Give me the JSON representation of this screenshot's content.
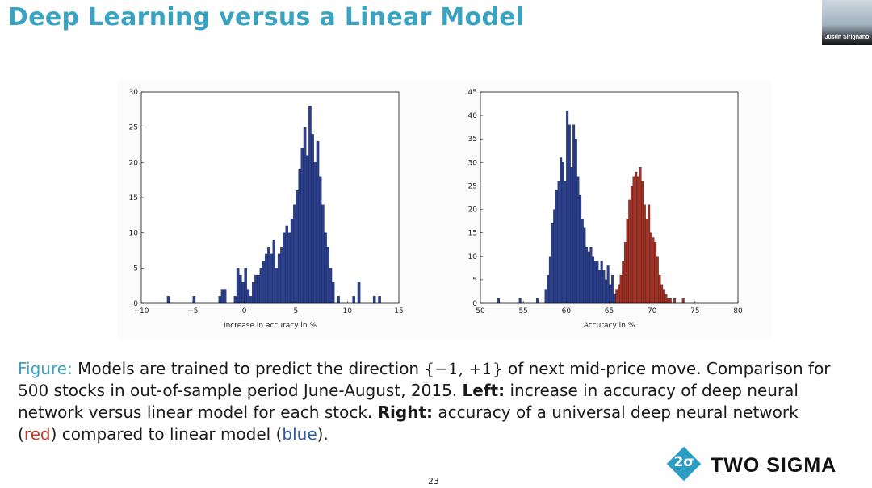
{
  "slide": {
    "title": "Deep Learning versus a Linear Model",
    "presenter_name": "Justin Sirignano",
    "page_number": "23"
  },
  "caption": {
    "figure_label": "Figure:",
    "part1": " Models are trained to predict the direction ",
    "math_set": "{−1, +1}",
    "part2": " of next mid-price move. Comparison for ",
    "math_500": "500",
    "part3": " stocks in out-of-sample period June-August, 2015. ",
    "left_label": "Left:",
    "part4": " increase in accuracy of deep neural network versus linear model for each stock. ",
    "right_label": "Right:",
    "part5": " accuracy of a universal deep neural network (",
    "red_word": "red",
    "part6": ") compared to linear model (",
    "blue_word": "blue",
    "part7": ")."
  },
  "logo": {
    "glyph": "2σ",
    "text": "TWO SIGMA"
  },
  "colors": {
    "title": "#3aa3c2",
    "blue_bars": "#2b3f8c",
    "red_bars": "#a8301f",
    "logo": "#2b9cc4"
  },
  "chart_data": [
    {
      "type": "bar",
      "title": "",
      "xlabel": "Increase in accuracy in %",
      "ylabel": "",
      "xlim": [
        -10,
        15
      ],
      "ylim": [
        0,
        30
      ],
      "xticks": [
        -10,
        -5,
        0,
        5,
        10,
        15
      ],
      "yticks": [
        0,
        5,
        10,
        15,
        20,
        25,
        30
      ],
      "bin_width": 0.25,
      "series": [
        {
          "name": "deep vs linear",
          "color": "#2b3f8c",
          "bins": [
            [
              -7.5,
              1
            ],
            [
              -5.0,
              1
            ],
            [
              -2.5,
              1
            ],
            [
              -2.25,
              2
            ],
            [
              -2.0,
              2
            ],
            [
              -1.0,
              1
            ],
            [
              -0.75,
              5
            ],
            [
              -0.5,
              4
            ],
            [
              -0.25,
              3
            ],
            [
              0.0,
              5
            ],
            [
              0.25,
              2
            ],
            [
              0.5,
              1
            ],
            [
              0.75,
              3
            ],
            [
              1.0,
              4
            ],
            [
              1.25,
              4
            ],
            [
              1.5,
              5
            ],
            [
              1.75,
              6
            ],
            [
              2.0,
              7
            ],
            [
              2.25,
              8
            ],
            [
              2.5,
              7
            ],
            [
              2.75,
              9
            ],
            [
              3.0,
              5
            ],
            [
              3.25,
              7
            ],
            [
              3.5,
              8
            ],
            [
              3.75,
              10
            ],
            [
              4.0,
              11
            ],
            [
              4.25,
              10
            ],
            [
              4.5,
              12
            ],
            [
              4.75,
              14
            ],
            [
              5.0,
              16
            ],
            [
              5.25,
              19
            ],
            [
              5.5,
              22
            ],
            [
              5.75,
              25
            ],
            [
              6.0,
              21
            ],
            [
              6.25,
              28
            ],
            [
              6.5,
              24
            ],
            [
              6.75,
              20
            ],
            [
              7.0,
              23
            ],
            [
              7.25,
              18
            ],
            [
              7.5,
              14
            ],
            [
              7.75,
              10
            ],
            [
              8.0,
              8
            ],
            [
              8.25,
              5
            ],
            [
              8.5,
              3
            ],
            [
              9.0,
              1
            ],
            [
              10.5,
              1
            ],
            [
              11.0,
              3
            ],
            [
              12.5,
              1
            ],
            [
              13.0,
              1
            ]
          ]
        }
      ]
    },
    {
      "type": "bar",
      "title": "",
      "xlabel": "Accuracy in %",
      "ylabel": "",
      "xlim": [
        50,
        80
      ],
      "ylim": [
        0,
        45
      ],
      "xticks": [
        50,
        55,
        60,
        65,
        70,
        75,
        80
      ],
      "yticks": [
        0,
        5,
        10,
        15,
        20,
        25,
        30,
        35,
        40,
        45
      ],
      "bin_width": 0.25,
      "series": [
        {
          "name": "linear model",
          "color": "#2b3f8c",
          "bins": [
            [
              52.0,
              1
            ],
            [
              54.5,
              1
            ],
            [
              56.5,
              1
            ],
            [
              57.5,
              3
            ],
            [
              57.75,
              6
            ],
            [
              58.0,
              10
            ],
            [
              58.25,
              17
            ],
            [
              58.5,
              20
            ],
            [
              58.75,
              24
            ],
            [
              59.0,
              26
            ],
            [
              59.25,
              31
            ],
            [
              59.5,
              30
            ],
            [
              59.75,
              26
            ],
            [
              60.0,
              41
            ],
            [
              60.25,
              38
            ],
            [
              60.5,
              29
            ],
            [
              60.75,
              38
            ],
            [
              61.0,
              35
            ],
            [
              61.25,
              27
            ],
            [
              61.5,
              23
            ],
            [
              61.75,
              18
            ],
            [
              62.0,
              16
            ],
            [
              62.25,
              12
            ],
            [
              62.5,
              11
            ],
            [
              62.75,
              12
            ],
            [
              63.0,
              10
            ],
            [
              63.25,
              9
            ],
            [
              63.5,
              9
            ],
            [
              63.75,
              7
            ],
            [
              64.0,
              9
            ],
            [
              64.25,
              7
            ],
            [
              64.5,
              5
            ],
            [
              64.75,
              8
            ],
            [
              65.0,
              4
            ],
            [
              65.25,
              6
            ],
            [
              65.5,
              2
            ],
            [
              65.75,
              2
            ],
            [
              66.0,
              1
            ]
          ]
        },
        {
          "name": "universal deep neural network",
          "color": "#a8301f",
          "bins": [
            [
              65.75,
              3
            ],
            [
              66.0,
              4
            ],
            [
              66.25,
              6
            ],
            [
              66.5,
              9
            ],
            [
              66.75,
              13
            ],
            [
              67.0,
              18
            ],
            [
              67.25,
              22
            ],
            [
              67.5,
              25
            ],
            [
              67.75,
              27
            ],
            [
              68.0,
              28
            ],
            [
              68.25,
              27
            ],
            [
              68.5,
              29
            ],
            [
              68.75,
              26
            ],
            [
              69.0,
              21
            ],
            [
              69.25,
              18
            ],
            [
              69.5,
              21
            ],
            [
              69.75,
              15
            ],
            [
              70.0,
              14
            ],
            [
              70.25,
              13
            ],
            [
              70.5,
              10
            ],
            [
              70.75,
              6
            ],
            [
              71.0,
              4
            ],
            [
              71.25,
              3
            ],
            [
              71.5,
              2
            ],
            [
              71.75,
              1
            ],
            [
              72.0,
              1
            ],
            [
              72.5,
              1
            ],
            [
              73.5,
              1
            ]
          ]
        }
      ]
    }
  ]
}
